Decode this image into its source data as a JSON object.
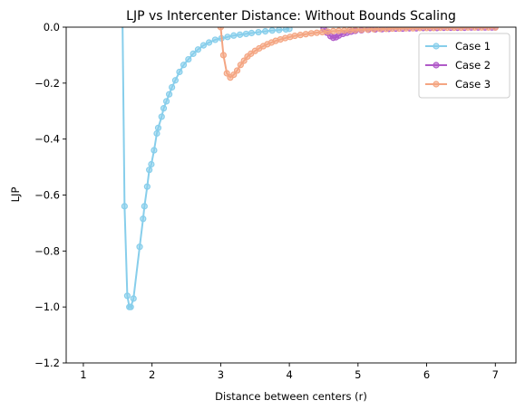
{
  "chart_data": {
    "type": "line",
    "title": "LJP vs Intercenter Distance: Without Bounds Scaling",
    "xlabel": "Distance between centers (r)",
    "ylabel": "LJP",
    "xlim": [
      0.75,
      7.3
    ],
    "ylim": [
      -1.2,
      0.0
    ],
    "xticks": [
      1,
      2,
      3,
      4,
      5,
      6,
      7
    ],
    "xtick_labels": [
      "1",
      "2",
      "3",
      "4",
      "5",
      "6",
      "7"
    ],
    "yticks": [
      0.0,
      -0.2,
      -0.4,
      -0.6,
      -0.8,
      -1.0,
      -1.2
    ],
    "ytick_labels": [
      "0.0",
      "−0.2",
      "−0.4",
      "−0.6",
      "−0.8",
      "−1.0",
      "−1.2"
    ],
    "grid": false,
    "legend": "top-right",
    "series": [
      {
        "name": "Case 1",
        "color": "#87ceeb",
        "x": [
          1.57,
          1.6,
          1.64,
          1.67,
          1.69,
          1.73,
          1.82,
          1.87,
          1.89,
          1.93,
          1.96,
          1.99,
          2.03,
          2.07,
          2.09,
          2.14,
          2.17,
          2.21,
          2.25,
          2.29,
          2.34,
          2.4,
          2.46,
          2.53,
          2.6,
          2.67,
          2.75,
          2.83,
          2.92,
          3.01,
          3.1,
          3.19,
          3.28,
          3.37,
          3.45,
          3.55,
          3.65,
          3.75,
          3.85,
          3.95,
          4.0
        ],
        "y": [
          0.03,
          -0.64,
          -0.96,
          -1.0,
          -1.0,
          -0.97,
          -0.785,
          -0.685,
          -0.64,
          -0.57,
          -0.51,
          -0.49,
          -0.44,
          -0.38,
          -0.36,
          -0.32,
          -0.29,
          -0.265,
          -0.24,
          -0.215,
          -0.19,
          -0.16,
          -0.135,
          -0.115,
          -0.095,
          -0.08,
          -0.065,
          -0.055,
          -0.045,
          -0.04,
          -0.035,
          -0.03,
          -0.027,
          -0.024,
          -0.021,
          -0.018,
          -0.015,
          -0.012,
          -0.01,
          -0.008,
          -0.006
        ]
      },
      {
        "name": "Case 2",
        "color": "#b05ac8",
        "x": [
          4.5,
          4.55,
          4.6,
          4.64,
          4.68,
          4.72,
          4.78,
          4.84,
          4.9,
          4.96,
          5.05,
          5.15,
          5.25,
          5.35,
          5.45,
          5.55,
          5.65,
          5.75,
          5.85,
          5.95,
          6.05,
          6.15,
          6.25,
          6.35,
          6.45,
          6.55,
          6.65,
          6.75,
          6.85,
          6.95,
          7.0
        ],
        "y": [
          -0.005,
          -0.02,
          -0.032,
          -0.038,
          -0.036,
          -0.03,
          -0.024,
          -0.02,
          -0.016,
          -0.013,
          -0.011,
          -0.009,
          -0.008,
          -0.007,
          -0.006,
          -0.005,
          -0.005,
          -0.004,
          -0.004,
          -0.003,
          -0.003,
          -0.003,
          -0.002,
          -0.002,
          -0.002,
          -0.002,
          -0.001,
          -0.001,
          -0.001,
          -0.001,
          -0.001
        ]
      },
      {
        "name": "Case 3",
        "color": "#f4a582",
        "x": [
          3.0,
          3.04,
          3.09,
          3.14,
          3.19,
          3.24,
          3.29,
          3.34,
          3.39,
          3.44,
          3.5,
          3.56,
          3.62,
          3.68,
          3.74,
          3.8,
          3.87,
          3.94,
          4.01,
          4.08,
          4.16,
          4.24,
          4.32,
          4.4,
          4.48,
          4.56,
          4.64,
          4.72,
          4.8,
          4.88,
          4.96,
          5.05,
          5.14,
          5.23,
          5.32,
          5.41,
          5.5,
          5.6,
          5.7,
          5.8,
          5.9,
          6.0,
          6.1,
          6.2,
          6.3,
          6.4,
          6.5,
          6.6,
          6.7,
          6.8,
          6.9,
          7.0
        ],
        "y": [
          0.0,
          -0.1,
          -0.165,
          -0.18,
          -0.17,
          -0.155,
          -0.135,
          -0.12,
          -0.105,
          -0.095,
          -0.085,
          -0.076,
          -0.068,
          -0.061,
          -0.055,
          -0.049,
          -0.044,
          -0.039,
          -0.035,
          -0.031,
          -0.028,
          -0.025,
          -0.022,
          -0.02,
          -0.018,
          -0.016,
          -0.014,
          -0.013,
          -0.012,
          -0.011,
          -0.01,
          -0.009,
          -0.008,
          -0.007,
          -0.006,
          -0.006,
          -0.005,
          -0.005,
          -0.004,
          -0.004,
          -0.003,
          -0.003,
          -0.003,
          -0.002,
          -0.002,
          -0.002,
          -0.002,
          -0.001,
          -0.001,
          -0.001,
          -0.001,
          -0.001
        ]
      }
    ]
  }
}
